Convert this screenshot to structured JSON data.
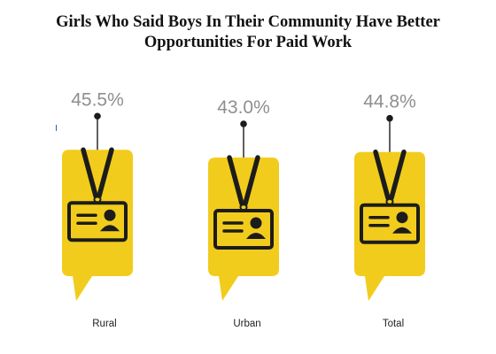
{
  "chart_data": {
    "type": "bar",
    "title_line1": "Girls Who Said Boys In Their Community Have Better",
    "title_line2": "Opportunities For Paid Work",
    "categories": [
      "Rural",
      "Urban",
      "Total"
    ],
    "values": [
      45.5,
      43.0,
      44.8
    ],
    "value_labels": [
      "45.5%",
      "43.0%",
      "44.8%"
    ],
    "grid": false,
    "legend": "none"
  },
  "colors": {
    "badge": "#f2cc1c",
    "lanyard": "#1c1c1c",
    "value_text": "#8f8f8f"
  },
  "icons": {
    "badge": "id-card-icon"
  }
}
